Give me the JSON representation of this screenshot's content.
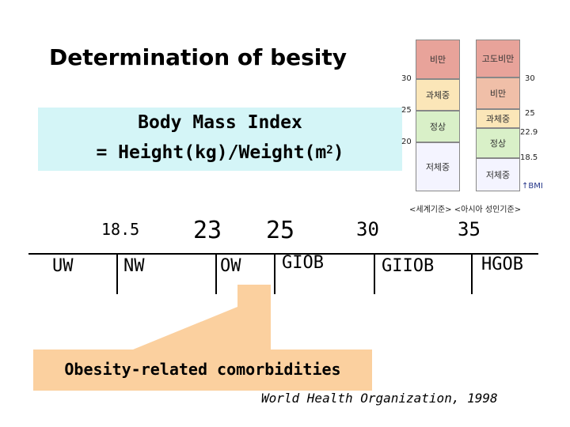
{
  "title": "Determination of besity",
  "formula": {
    "line1": "Body Mass Index",
    "line2_prefix": "= Height(kg)/Weight(m",
    "line2_sup": "2",
    "line2_suffix": ")"
  },
  "korean_table": {
    "left_column": {
      "cells": [
        "비만",
        "과체중",
        "정상",
        "저체중"
      ],
      "ticks": [
        "30",
        "25",
        "20"
      ]
    },
    "right_column": {
      "cells": [
        "고도비만",
        "비만",
        "과체중",
        "정상",
        "저체중"
      ],
      "ticks": [
        "30",
        "25",
        "22.9",
        "18.5"
      ]
    },
    "bmi_label": "↑BMI",
    "caption": "<세계기준> <아시아 성인기준>"
  },
  "scale": {
    "cutoffs": [
      "18.5",
      "23",
      "25",
      "30",
      "35"
    ],
    "categories": [
      "UW",
      "NW",
      "OW",
      "GIOB",
      "GIIOB",
      "HGOB"
    ]
  },
  "comorbidities_label": "Obesity-related comorbidities",
  "reference": "World Health Organization, 1998",
  "colors": {
    "formula_box": "#d4f5f7",
    "comorbidities_box": "#fbd09f",
    "obese_cell": "#e8a39a",
    "overweight_cell": "#fbe6b8",
    "normal_cell": "#d9f0c8",
    "under_cell": "#f4f4ff"
  }
}
